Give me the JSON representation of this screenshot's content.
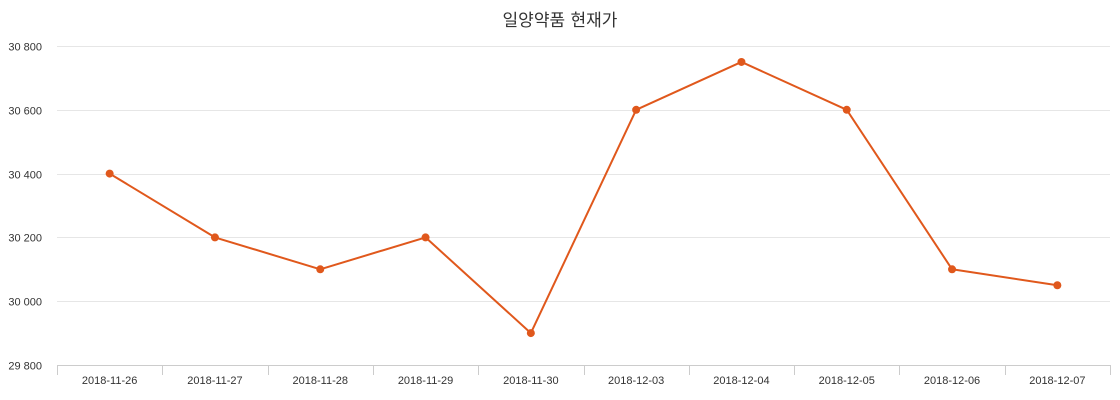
{
  "chart_data": {
    "type": "line",
    "title": "일양약품 현재가",
    "xlabel": "",
    "ylabel": "",
    "categories": [
      "2018-11-26",
      "2018-11-27",
      "2018-11-28",
      "2018-11-29",
      "2018-11-30",
      "2018-12-03",
      "2018-12-04",
      "2018-12-05",
      "2018-12-06",
      "2018-12-07"
    ],
    "series": [
      {
        "name": "현재가",
        "color": "#e0581c",
        "values": [
          30400,
          30200,
          30100,
          30200,
          29900,
          30600,
          30750,
          30600,
          30100,
          30050
        ]
      }
    ],
    "ylim": [
      29800,
      30800
    ],
    "yticks": [
      29800,
      30000,
      30200,
      30400,
      30600,
      30800
    ],
    "ytick_labels": [
      "29 800",
      "30 000",
      "30 200",
      "30 400",
      "30 600",
      "30 800"
    ],
    "grid": true,
    "legend": false
  },
  "colors": {
    "line": "#e0581c",
    "grid": "#e6e6e6",
    "axis": "#cccccc",
    "text": "#333333"
  }
}
